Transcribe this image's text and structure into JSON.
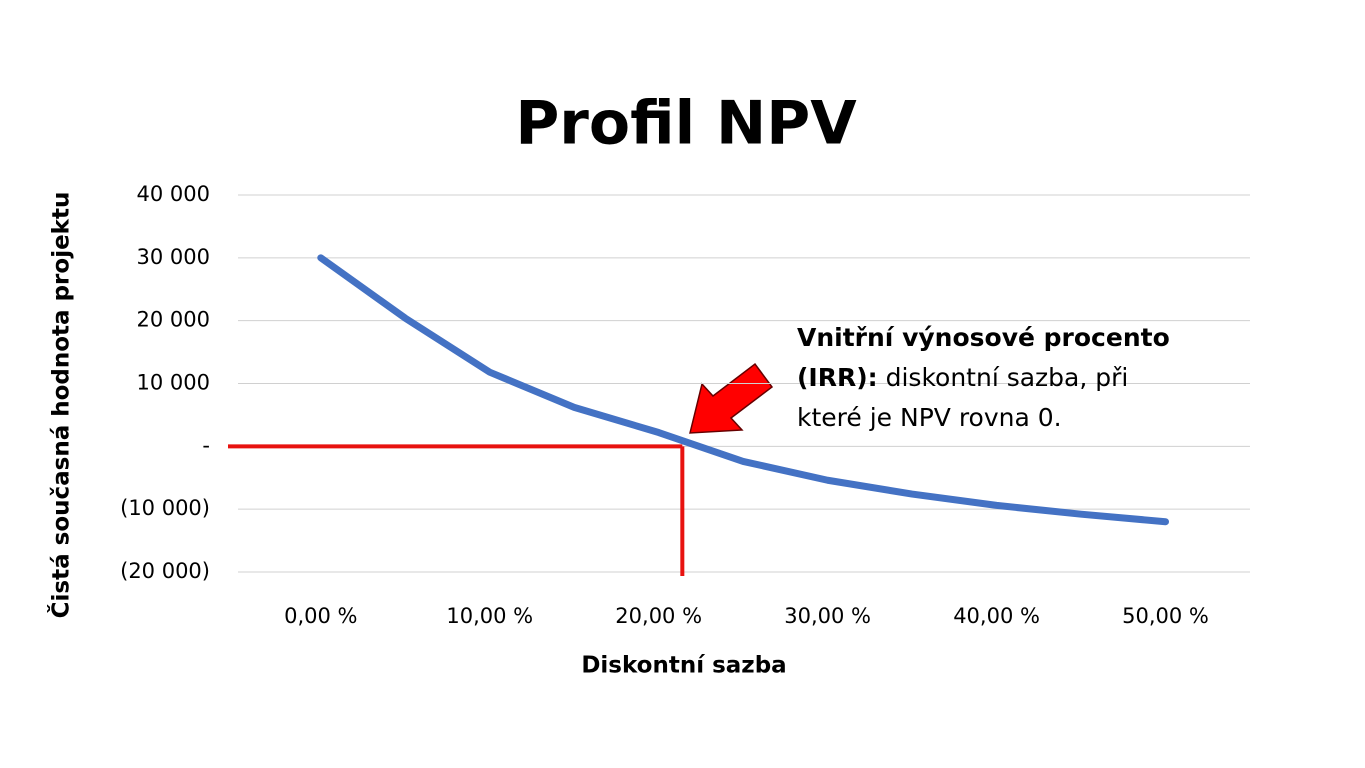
{
  "chart_data": {
    "type": "line",
    "title": "Profil NPV",
    "x_label": "Diskontní sazba",
    "y_label": "Čistá současná hodnota projektu",
    "x": [
      0,
      5,
      10,
      15,
      20,
      25,
      30,
      35,
      40,
      45,
      50
    ],
    "values": [
      30000,
      20400,
      11800,
      6200,
      2200,
      -2400,
      -5400,
      -7600,
      -9400,
      -10800,
      -12000
    ],
    "color": "#4472c4",
    "xlim": [
      -4.9,
      55
    ],
    "xticks": [
      {
        "value": 0,
        "label": "0,00 %"
      },
      {
        "value": 10,
        "label": "10,00 %"
      },
      {
        "value": 20,
        "label": "20,00 %"
      },
      {
        "value": 30,
        "label": "30,00 %"
      },
      {
        "value": 40,
        "label": "40,00 %"
      },
      {
        "value": 50,
        "label": "50,00 %"
      }
    ],
    "ylim": [
      -20000,
      40000
    ],
    "yticks": [
      {
        "value": 40000,
        "label": "40 000"
      },
      {
        "value": 30000,
        "label": "30 000"
      },
      {
        "value": 20000,
        "label": "20 000"
      },
      {
        "value": 10000,
        "label": "10 000"
      },
      {
        "value": 0,
        "label": "-"
      },
      {
        "value": -10000,
        "label": "(10 000)"
      },
      {
        "value": -20000,
        "label": "(20 000)"
      }
    ],
    "grid": true,
    "reference_point": {
      "x": 21.4,
      "y": 0,
      "color": "#e8120f"
    },
    "annotation": {
      "bold": "Vnitřní výnosové procento (IRR):",
      "text": "diskontní sazba, při které je NPV rovna 0."
    }
  }
}
